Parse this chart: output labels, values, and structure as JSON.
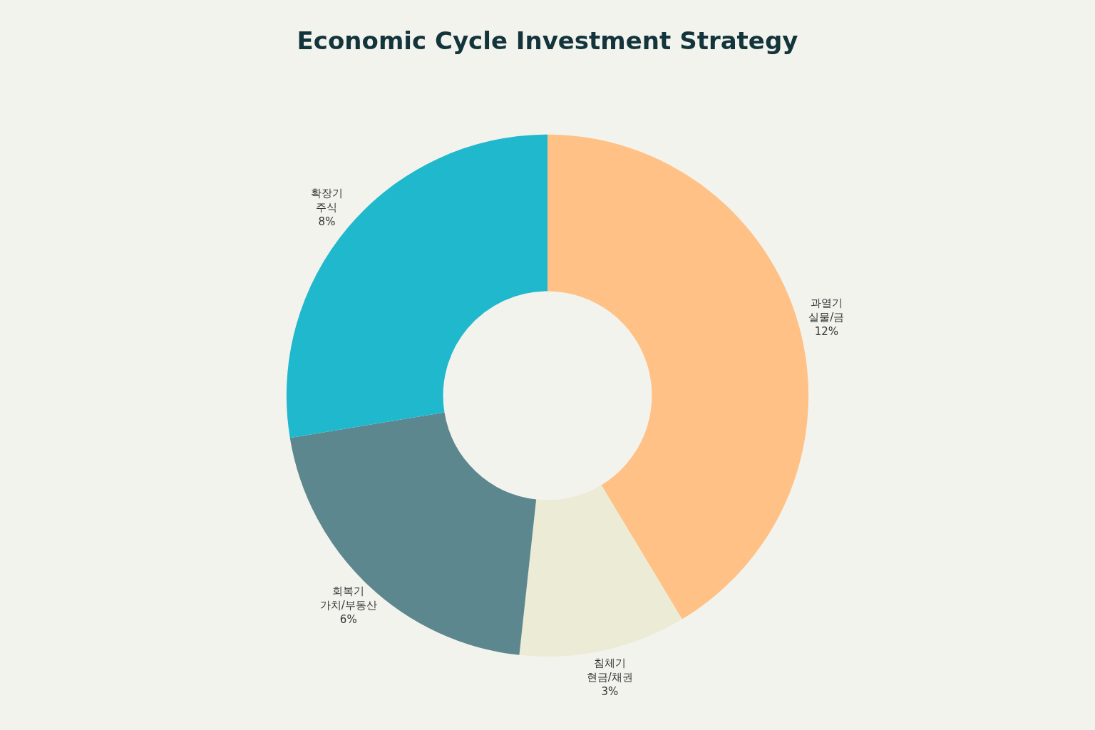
{
  "chart_data": {
    "type": "donut",
    "title": "Economic Cycle Investment Strategy",
    "categories": [
      "과열기\n실물/금",
      "침체기\n현금/채권",
      "회복기\n가치/부동산",
      "확장기\n주식"
    ],
    "values": [
      12,
      3,
      6,
      8
    ],
    "value_labels": [
      "12%",
      "3%",
      "6%",
      "8%"
    ],
    "colors": [
      "#ffc185",
      "#ecebd5",
      "#5d878f",
      "#1fb8cd"
    ],
    "legend": false
  }
}
